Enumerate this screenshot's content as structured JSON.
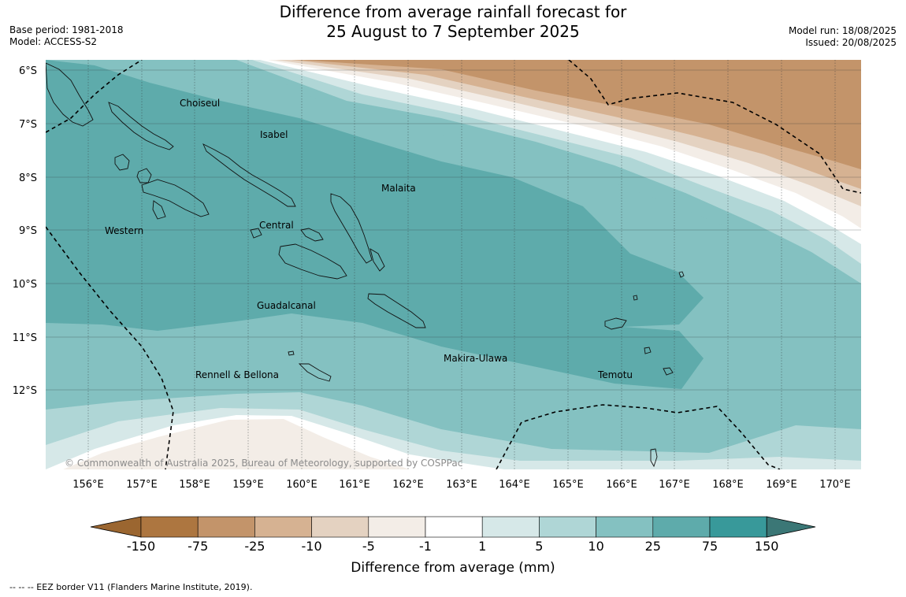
{
  "header": {
    "title_line1": "Difference from average rainfall forecast for",
    "title_line2": "25 August to 7 September 2025",
    "base_period": "Base period: 1981-2018",
    "model": "Model: ACCESS-S2",
    "model_run": "Model run: 18/08/2025",
    "issued": "Issued: 20/08/2025"
  },
  "map": {
    "lat_labels": [
      "6°S",
      "7°S",
      "8°S",
      "9°S",
      "10°S",
      "11°S",
      "12°S"
    ],
    "lon_labels": [
      "156°E",
      "157°E",
      "158°E",
      "159°E",
      "160°E",
      "161°E",
      "162°E",
      "163°E",
      "164°E",
      "165°E",
      "166°E",
      "167°E",
      "168°E",
      "169°E",
      "170°E"
    ],
    "places": {
      "choiseul": "Choiseul",
      "isabel": "Isabel",
      "malaita": "Malaita",
      "western": "Western",
      "central": "Central",
      "guadalcanal": "Guadalcanal",
      "makira": "Makira-Ulawa",
      "rennell": "Rennell & Bellona",
      "temotu": "Temotu"
    },
    "copyright": "© Commonwealth of Australia 2025, Bureau of Meteorology, supported by COSPPac"
  },
  "colorbar": {
    "title": "Difference from average (mm)",
    "ticks": [
      "-150",
      "-75",
      "-25",
      "-10",
      "-5",
      "-1",
      "1",
      "5",
      "10",
      "25",
      "75",
      "150"
    ],
    "colors": [
      "#9b6630",
      "#ad7640",
      "#c3946a",
      "#d6b292",
      "#e4d2c1",
      "#f3ede7",
      "#ffffff",
      "#d6e8e8",
      "#afd6d6",
      "#84c1c1",
      "#5eabab",
      "#38999a",
      "#3b7776"
    ]
  },
  "footnote": "--  --  -- EEZ border V11 (Flanders Marine Institute, 2019)."
}
